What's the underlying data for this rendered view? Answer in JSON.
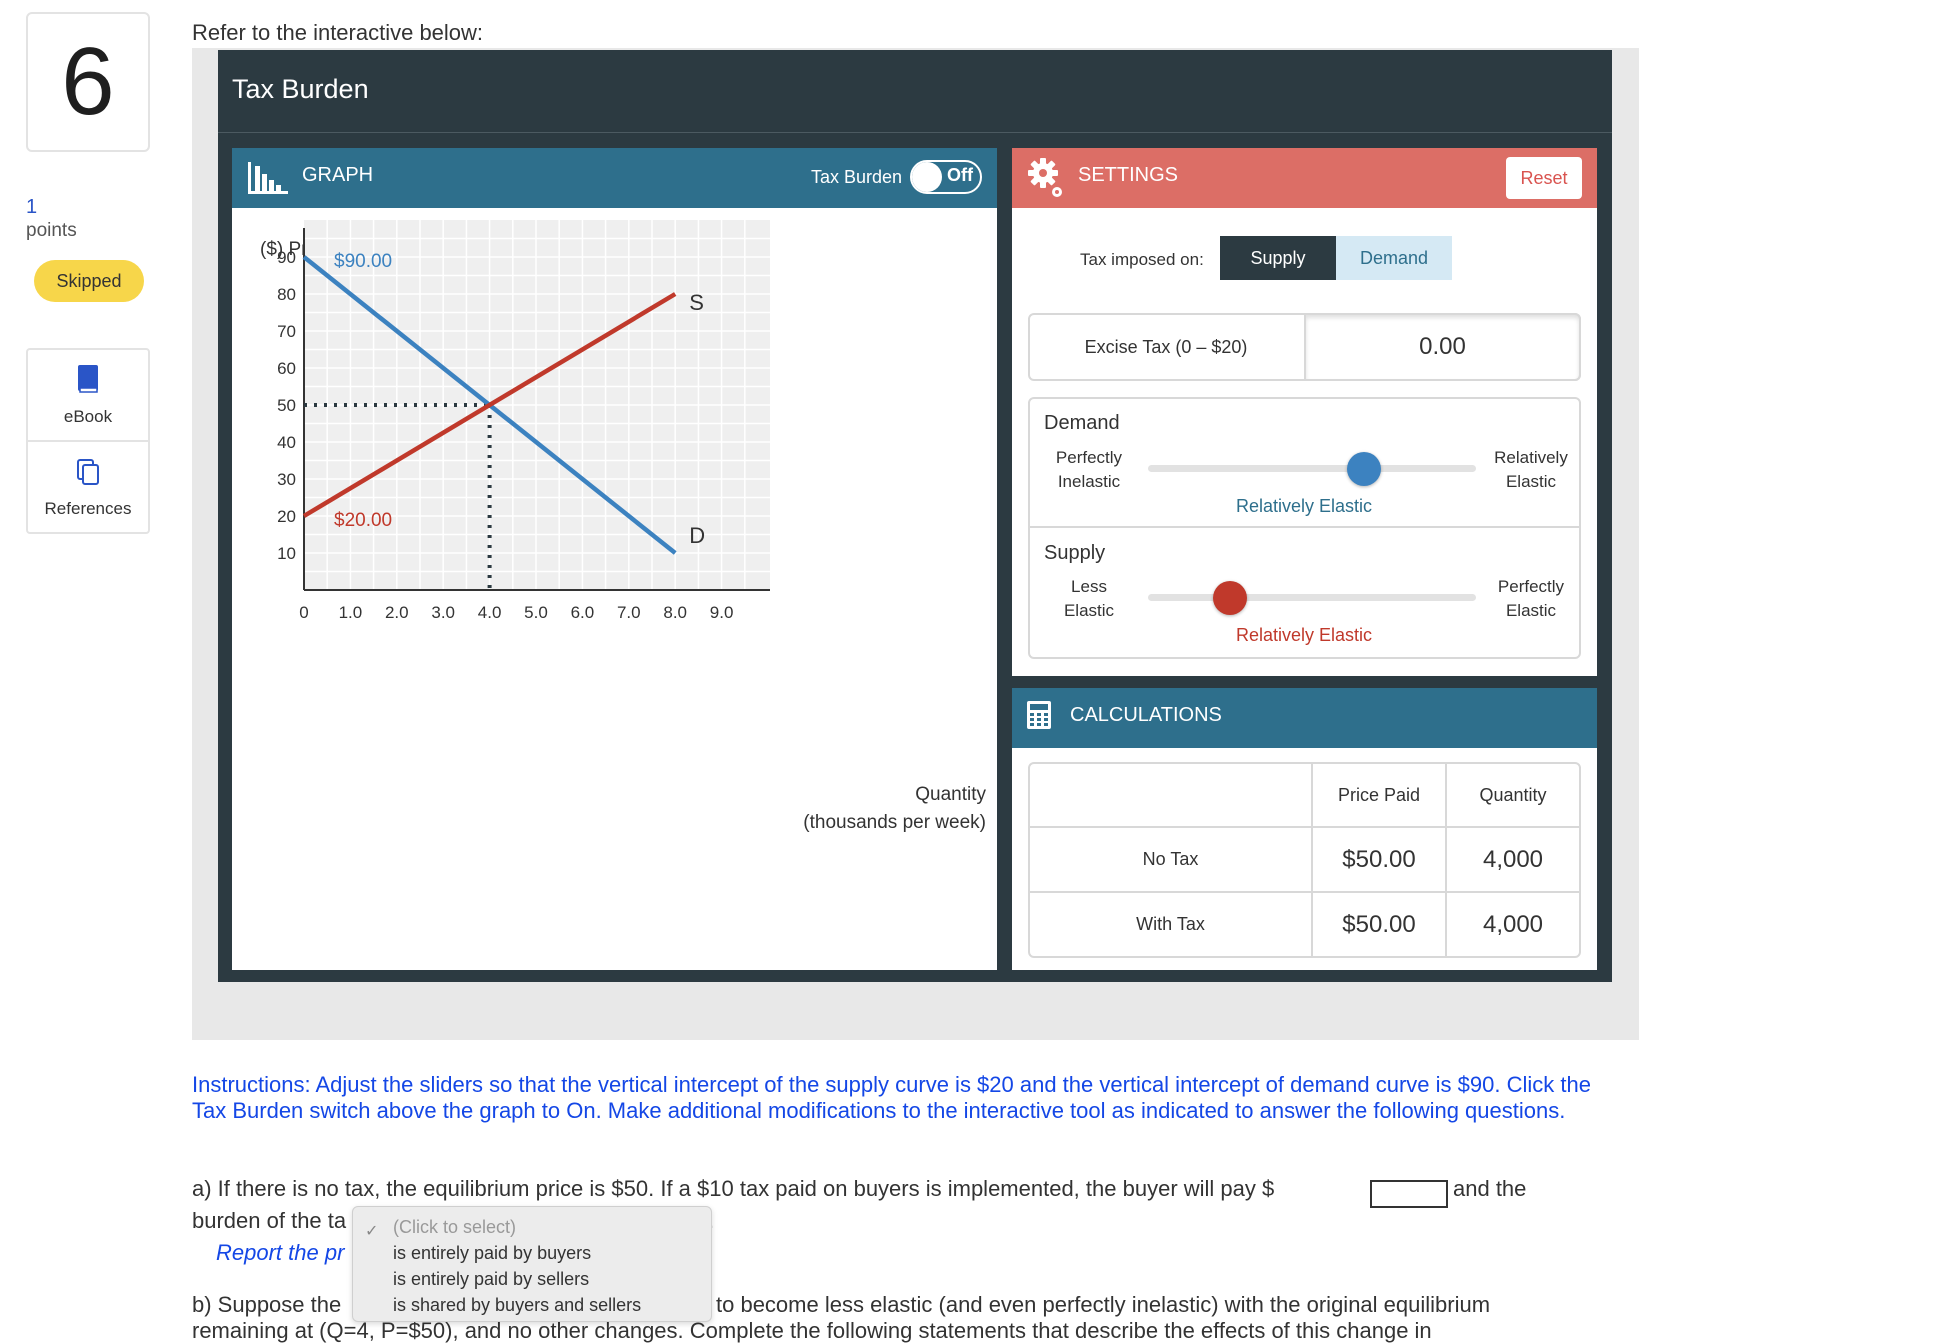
{
  "question": {
    "number": "6",
    "points_value": "1",
    "points_label": "points",
    "status": "Skipped"
  },
  "tools": [
    {
      "label": "eBook",
      "icon": "book-icon"
    },
    {
      "label": "References",
      "icon": "copy-icon"
    }
  ],
  "intro": "Refer to the interactive below:",
  "interactive": {
    "title": "Tax Burden",
    "graph": {
      "header": "GRAPH",
      "toggle_label": "Tax Burden",
      "toggle_state": "Off"
    },
    "settings": {
      "header": "SETTINGS",
      "reset_label": "Reset",
      "tax_imposed_label": "Tax imposed on:",
      "tax_options": [
        "Supply",
        "Demand"
      ],
      "tax_selected": "Supply",
      "excise_label": "Excise Tax (0 – $20)",
      "excise_value": "0.00",
      "demand": {
        "title": "Demand",
        "left": [
          "Perfectly",
          "Inelastic"
        ],
        "right": [
          "Relatively",
          "Elastic"
        ],
        "value_label": "Relatively Elastic",
        "position": 0.66
      },
      "supply": {
        "title": "Supply",
        "left": [
          "Less",
          "Elastic"
        ],
        "right": [
          "Perfectly",
          "Elastic"
        ],
        "value_label": "Relatively Elastic",
        "position": 0.25
      }
    },
    "calculations": {
      "header": "CALCULATIONS",
      "columns": [
        "",
        "Price Paid",
        "Quantity"
      ],
      "rows": [
        {
          "label": "No Tax",
          "price": "$50.00",
          "quantity": "4,000"
        },
        {
          "label": "With Tax",
          "price": "$50.00",
          "quantity": "4,000"
        }
      ]
    }
  },
  "chart_data": {
    "type": "line",
    "ylabel": "($) Price",
    "xlabel": "Quantity\n(thousands per week)",
    "xlabel_lines": [
      "Quantity",
      "(thousands per week)"
    ],
    "x_ticks": [
      "0",
      "1.0",
      "2.0",
      "3.0",
      "4.0",
      "5.0",
      "6.0",
      "7.0",
      "8.0",
      "9.0"
    ],
    "y_ticks": [
      "10",
      "20",
      "30",
      "40",
      "50",
      "60",
      "70",
      "80",
      "90"
    ],
    "xlim": [
      0,
      10
    ],
    "ylim": [
      0,
      100
    ],
    "grid": true,
    "series": [
      {
        "name": "D",
        "color": "#3c82c0",
        "points": [
          [
            0,
            90
          ],
          [
            8,
            10
          ]
        ],
        "intercept_label": "$90.00"
      },
      {
        "name": "S",
        "color": "#c0392b",
        "points": [
          [
            0,
            20
          ],
          [
            8,
            80
          ]
        ],
        "intercept_label": "$20.00"
      }
    ],
    "equilibrium": {
      "x": 4,
      "y": 50
    }
  },
  "instructions": "Instructions: Adjust the sliders so that the vertical intercept of the supply curve is $20 and the vertical intercept of demand curve is $90.  Click the Tax Burden switch above the graph to On.  Make additional modifications to the interactive tool as indicated to answer the following questions.",
  "part_a": {
    "text": "a) If there is no tax, the equilibrium price is $50.  If a $10 tax paid on buyers is implemented, the buyer will pay $",
    "tail": "and the",
    "line2_start": "burden of the ta",
    "line2_end": ".",
    "report": "Report the pr"
  },
  "dropdown": {
    "placeholder": "(Click to select)",
    "options": [
      "is entirely paid by buyers",
      "is entirely paid by sellers",
      "is shared by buyers and sellers"
    ]
  },
  "part_b": {
    "start": "b) Suppose the",
    "end": "to become less elastic (and even perfectly inelastic) with the original equilibrium",
    "cut": "remaining at (Q=4, P=$50), and no other changes.  Complete the following statements that describe the effects of this change in"
  }
}
